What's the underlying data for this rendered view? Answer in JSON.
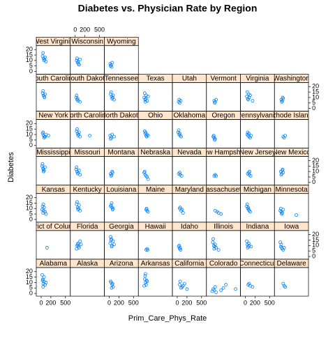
{
  "chart_data": {
    "type": "scatter",
    "title": "Diabetes vs. Physician Rate by Region",
    "xlabel": "Prim_Care_Phys_Rate",
    "ylabel": "Diabetes",
    "xlim": [
      -100,
      600
    ],
    "ylim": [
      -2.5,
      23.75
    ],
    "xticks": [
      0,
      200,
      500
    ],
    "yticks": [
      0,
      5,
      10,
      15,
      20
    ],
    "color": "#0080ff",
    "strip_color": "#ffe5cc",
    "columns": 8,
    "panels": [
      {
        "name": "Alabama",
        "x": [
          30,
          45,
          60,
          20,
          80,
          55,
          40,
          100,
          35
        ],
        "y": [
          12,
          9,
          15,
          17,
          8,
          11,
          6,
          10,
          13
        ]
      },
      {
        "name": "Alaska",
        "x": [],
        "y": []
      },
      {
        "name": "Arizona",
        "x": [
          40,
          60,
          80,
          50,
          30,
          70
        ],
        "y": [
          10,
          8,
          6,
          5,
          11,
          9
        ]
      },
      {
        "name": "Arkansas",
        "x": [
          30,
          50,
          40,
          60,
          80,
          20,
          45,
          70
        ],
        "y": [
          13,
          10,
          16,
          8,
          11,
          7,
          18,
          12
        ]
      },
      {
        "name": "California",
        "x": [
          50,
          100,
          150,
          80,
          200,
          60,
          120
        ],
        "y": [
          8,
          6,
          9,
          5,
          4,
          11,
          7
        ]
      },
      {
        "name": "Colorado",
        "x": [
          20,
          40,
          60,
          80,
          100,
          200,
          300,
          250,
          500
        ],
        "y": [
          2,
          4,
          3,
          6,
          1,
          3,
          8,
          5,
          4
        ]
      },
      {
        "name": "Connecticut",
        "x": [
          60,
          100,
          150,
          80
        ],
        "y": [
          8,
          7,
          6,
          9
        ]
      },
      {
        "name": "Delaware",
        "x": [
          80,
          100,
          120
        ],
        "y": [
          9,
          7,
          6
        ]
      },
      {
        "name": "District of Columbia",
        "x": [
          120
        ],
        "y": [
          8
        ]
      },
      {
        "name": "Florida",
        "x": [
          40,
          60,
          80,
          100,
          50,
          30,
          70,
          120
        ],
        "y": [
          10,
          12,
          8,
          14,
          11,
          7,
          9,
          11
        ]
      },
      {
        "name": "Georgia",
        "x": [
          20,
          40,
          60,
          30,
          50,
          80,
          100,
          45
        ],
        "y": [
          12,
          15,
          10,
          18,
          9,
          14,
          11,
          16
        ]
      },
      {
        "name": "Hawaii",
        "x": [
          60,
          80,
          90
        ],
        "y": [
          6,
          7,
          6
        ]
      },
      {
        "name": "Idaho",
        "x": [
          30,
          50,
          70,
          40,
          60
        ],
        "y": [
          9,
          7,
          6,
          10,
          8
        ]
      },
      {
        "name": "Illinois",
        "x": [
          30,
          50,
          70,
          40,
          60,
          80,
          100,
          150
        ],
        "y": [
          13,
          10,
          9,
          16,
          7,
          11,
          8,
          6
        ]
      },
      {
        "name": "Indiana",
        "x": [
          40,
          60,
          80,
          50,
          30,
          70,
          120
        ],
        "y": [
          11,
          9,
          10,
          8,
          14,
          12,
          9
        ]
      },
      {
        "name": "Iowa",
        "x": [
          30,
          50,
          40,
          60,
          80,
          20,
          100
        ],
        "y": [
          9,
          8,
          11,
          7,
          6,
          13,
          8
        ]
      },
      {
        "name": "Kansas",
        "x": [
          20,
          40,
          60,
          30,
          50,
          80,
          100,
          45
        ],
        "y": [
          9,
          6,
          11,
          12,
          8,
          7,
          5,
          14
        ]
      },
      {
        "name": "Kentucky",
        "x": [
          30,
          50,
          70,
          40,
          60,
          80,
          100
        ],
        "y": [
          14,
          11,
          10,
          16,
          9,
          13,
          8
        ]
      },
      {
        "name": "Louisiana",
        "x": [
          40,
          60,
          80,
          50,
          30,
          70
        ],
        "y": [
          13,
          11,
          10,
          15,
          12,
          9
        ]
      },
      {
        "name": "Maine",
        "x": [
          60,
          80,
          100,
          70
        ],
        "y": [
          9,
          8,
          7,
          10
        ]
      },
      {
        "name": "Maryland",
        "x": [
          50,
          80,
          120,
          100,
          60
        ],
        "y": [
          10,
          8,
          6,
          9,
          11
        ]
      },
      {
        "name": "Massachusetts",
        "x": [
          80,
          120,
          150,
          200
        ],
        "y": [
          8,
          7,
          6,
          5
        ]
      },
      {
        "name": "Michigan",
        "x": [
          30,
          50,
          70,
          40,
          60,
          80,
          100
        ],
        "y": [
          12,
          10,
          9,
          14,
          11,
          8,
          7
        ]
      },
      {
        "name": "Minnesota",
        "x": [
          20,
          40,
          60,
          30,
          50,
          80,
          350
        ],
        "y": [
          8,
          7,
          6,
          10,
          5,
          9,
          4
        ]
      },
      {
        "name": "Mississippi",
        "x": [
          20,
          40,
          60,
          30,
          50,
          80,
          45
        ],
        "y": [
          15,
          13,
          11,
          17,
          10,
          14,
          12
        ]
      },
      {
        "name": "Missouri",
        "x": [
          20,
          40,
          60,
          30,
          50,
          80,
          100
        ],
        "y": [
          12,
          10,
          9,
          14,
          8,
          11,
          7
        ]
      },
      {
        "name": "Montana",
        "x": [
          30,
          50,
          70,
          40,
          60
        ],
        "y": [
          8,
          7,
          9,
          6,
          10
        ]
      },
      {
        "name": "Nebraska",
        "x": [
          20,
          40,
          60,
          30,
          80,
          100
        ],
        "y": [
          9,
          7,
          6,
          10,
          5,
          3
        ]
      },
      {
        "name": "Nevada",
        "x": [
          30,
          60,
          90,
          50
        ],
        "y": [
          8,
          7,
          6,
          9
        ]
      },
      {
        "name": "New Hampshire",
        "x": [
          60,
          80,
          100
        ],
        "y": [
          6,
          7,
          6
        ]
      },
      {
        "name": "New Jersey",
        "x": [
          50,
          80,
          110,
          70,
          90
        ],
        "y": [
          8,
          7,
          6,
          9,
          10
        ]
      },
      {
        "name": "New Mexico",
        "x": [
          30,
          50,
          70,
          40,
          60,
          80
        ],
        "y": [
          10,
          8,
          12,
          7,
          11,
          9
        ]
      },
      {
        "name": "New York",
        "x": [
          30,
          50,
          70,
          40,
          60,
          100,
          150,
          80
        ],
        "y": [
          11,
          9,
          8,
          12,
          7,
          10,
          9,
          8
        ]
      },
      {
        "name": "North Carolina",
        "x": [
          30,
          50,
          70,
          40,
          60,
          80,
          100,
          300
        ],
        "y": [
          13,
          11,
          10,
          15,
          9,
          12,
          8,
          9
        ]
      },
      {
        "name": "North Dakota",
        "x": [
          20,
          40,
          60,
          30,
          100
        ],
        "y": [
          9,
          7,
          10,
          6,
          8
        ]
      },
      {
        "name": "Ohio",
        "x": [
          40,
          60,
          80,
          50,
          30,
          70,
          100
        ],
        "y": [
          11,
          9,
          10,
          12,
          13,
          8,
          9
        ]
      },
      {
        "name": "Oklahoma",
        "x": [
          20,
          40,
          60,
          30,
          50,
          80
        ],
        "y": [
          12,
          10,
          9,
          14,
          11,
          8
        ]
      },
      {
        "name": "Oregon",
        "x": [
          40,
          60,
          80,
          50,
          70
        ],
        "y": [
          8,
          7,
          6,
          9,
          5
        ]
      },
      {
        "name": "Pennsylvania",
        "x": [
          40,
          60,
          80,
          50,
          70,
          100,
          120
        ],
        "y": [
          10,
          9,
          8,
          12,
          11,
          7,
          9
        ]
      },
      {
        "name": "Rhode Island",
        "x": [
          80,
          100,
          120
        ],
        "y": [
          8,
          7,
          9
        ]
      },
      {
        "name": "South Carolina",
        "x": [
          30,
          50,
          70,
          40,
          60,
          80
        ],
        "y": [
          14,
          12,
          10,
          16,
          11,
          13
        ]
      },
      {
        "name": "South Dakota",
        "x": [
          20,
          40,
          60,
          30,
          50,
          100
        ],
        "y": [
          10,
          8,
          7,
          12,
          9,
          6
        ]
      },
      {
        "name": "Tennessee",
        "x": [
          30,
          50,
          70,
          40,
          60,
          80,
          100
        ],
        "y": [
          13,
          11,
          10,
          15,
          9,
          12,
          8
        ]
      },
      {
        "name": "Texas",
        "x": [
          20,
          40,
          60,
          30,
          50,
          80,
          100,
          45
        ],
        "y": [
          10,
          8,
          12,
          14,
          9,
          7,
          11,
          6
        ]
      },
      {
        "name": "Utah",
        "x": [
          30,
          50,
          70,
          40
        ],
        "y": [
          6,
          5,
          7,
          8
        ]
      },
      {
        "name": "Vermont",
        "x": [
          60,
          80,
          100,
          70
        ],
        "y": [
          7,
          6,
          8,
          5
        ]
      },
      {
        "name": "Virginia",
        "x": [
          30,
          50,
          70,
          40,
          60,
          80,
          100,
          150
        ],
        "y": [
          11,
          9,
          13,
          15,
          8,
          10,
          12,
          7
        ]
      },
      {
        "name": "Washington",
        "x": [
          40,
          60,
          80,
          50,
          70
        ],
        "y": [
          8,
          7,
          9,
          6,
          10
        ]
      },
      {
        "name": "West Virginia",
        "x": [
          30,
          50,
          70,
          40,
          60,
          80,
          100
        ],
        "y": [
          14,
          12,
          11,
          17,
          10,
          13,
          9
        ]
      },
      {
        "name": "Wisconsin",
        "x": [
          30,
          50,
          70,
          40,
          60,
          80,
          100
        ],
        "y": [
          10,
          8,
          7,
          12,
          9,
          6,
          11
        ]
      },
      {
        "name": "Wyoming",
        "x": [
          20,
          40,
          60,
          30,
          50
        ],
        "y": [
          7,
          6,
          8,
          5,
          4
        ]
      }
    ]
  }
}
